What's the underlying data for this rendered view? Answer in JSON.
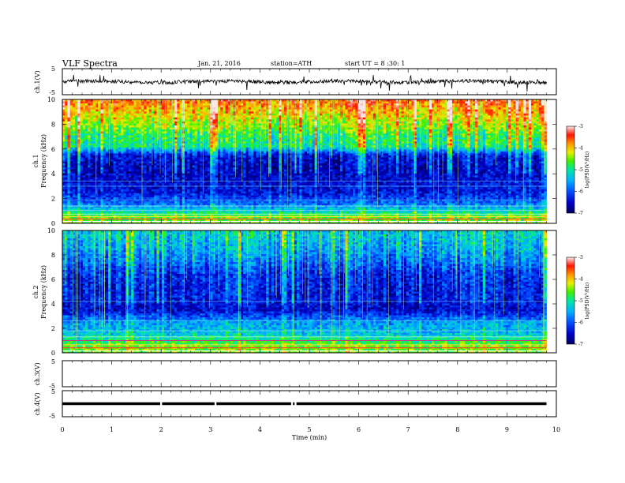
{
  "header": {
    "title": "VLF Spectra",
    "date": "Jan. 21, 2016",
    "station": "station=ATH",
    "start": "start UT = 8 :30: 1"
  },
  "chart_data": {
    "type": "heatmap",
    "title": "VLF Spectra",
    "xlabel": "Time (min)",
    "xlim": [
      0,
      10
    ],
    "x_ticks": [
      "0",
      "1",
      "2",
      "3",
      "4",
      "5",
      "6",
      "7",
      "8",
      "9",
      "10"
    ],
    "data_end_min": 9.8,
    "panels": [
      {
        "id": "ch1-waveform",
        "type": "line",
        "ylabel": "ch.1(V)",
        "ylim": [
          -5,
          5
        ],
        "y_ticks": [
          "5",
          "-5"
        ],
        "description_level": "noisy trace near 0 V"
      },
      {
        "id": "ch1-spectrogram",
        "type": "heatmap",
        "ylabel_top": "ch.1",
        "ylabel": "Frequency (kHz)",
        "ylim": [
          0,
          10
        ],
        "y_ticks": [
          "0",
          "2",
          "4",
          "6",
          "8",
          "10"
        ],
        "colorbar": {
          "label": "log(PSD(V²/Hz)",
          "range": [
            -7,
            -3
          ],
          "ticks": [
            "-3",
            "-4",
            "-5",
            "-6",
            "-7"
          ]
        },
        "freq_profile_kHz_logPSD": [
          [
            0.5,
            -4.6
          ],
          [
            1.5,
            -5.8
          ],
          [
            2.5,
            -6.4
          ],
          [
            3.5,
            -6.5
          ],
          [
            4.5,
            -6.6
          ],
          [
            5.5,
            -6.4
          ],
          [
            6.2,
            -5.0
          ],
          [
            7.0,
            -4.9
          ],
          [
            8.0,
            -4.4
          ],
          [
            9.0,
            -4.0
          ],
          [
            10.0,
            -3.6
          ]
        ]
      },
      {
        "id": "ch2-spectrogram",
        "type": "heatmap",
        "ylabel_top": "ch.2",
        "ylabel": "Frequency (kHz)",
        "ylim": [
          0,
          10
        ],
        "y_ticks": [
          "0",
          "2",
          "4",
          "6",
          "8",
          "10"
        ],
        "colorbar": {
          "label": "log(PSD(V²/Hz)",
          "range": [
            -7,
            -3
          ],
          "ticks": [
            "-3",
            "-4",
            "-5",
            "-6",
            "-7"
          ]
        },
        "freq_profile_kHz_logPSD": [
          [
            0.5,
            -4.5
          ],
          [
            1.5,
            -5.3
          ],
          [
            2.5,
            -5.6
          ],
          [
            3.5,
            -6.5
          ],
          [
            4.5,
            -6.3
          ],
          [
            5.5,
            -6.3
          ],
          [
            6.5,
            -6.2
          ],
          [
            7.5,
            -5.8
          ],
          [
            8.5,
            -5.5
          ],
          [
            9.5,
            -5.3
          ],
          [
            10.0,
            -5.2
          ]
        ]
      },
      {
        "id": "ch3-waveform",
        "type": "line",
        "ylabel": "ch.3(V)",
        "ylim": [
          -5,
          5
        ],
        "y_ticks": [
          "5",
          "-5"
        ],
        "description_level": "no signal"
      },
      {
        "id": "ch4-waveform",
        "type": "line",
        "ylabel": "ch.4(V)",
        "ylim": [
          -5,
          5
        ],
        "y_ticks": [
          "5",
          "-5"
        ],
        "description_level": "flat trace near 0 V"
      }
    ]
  }
}
